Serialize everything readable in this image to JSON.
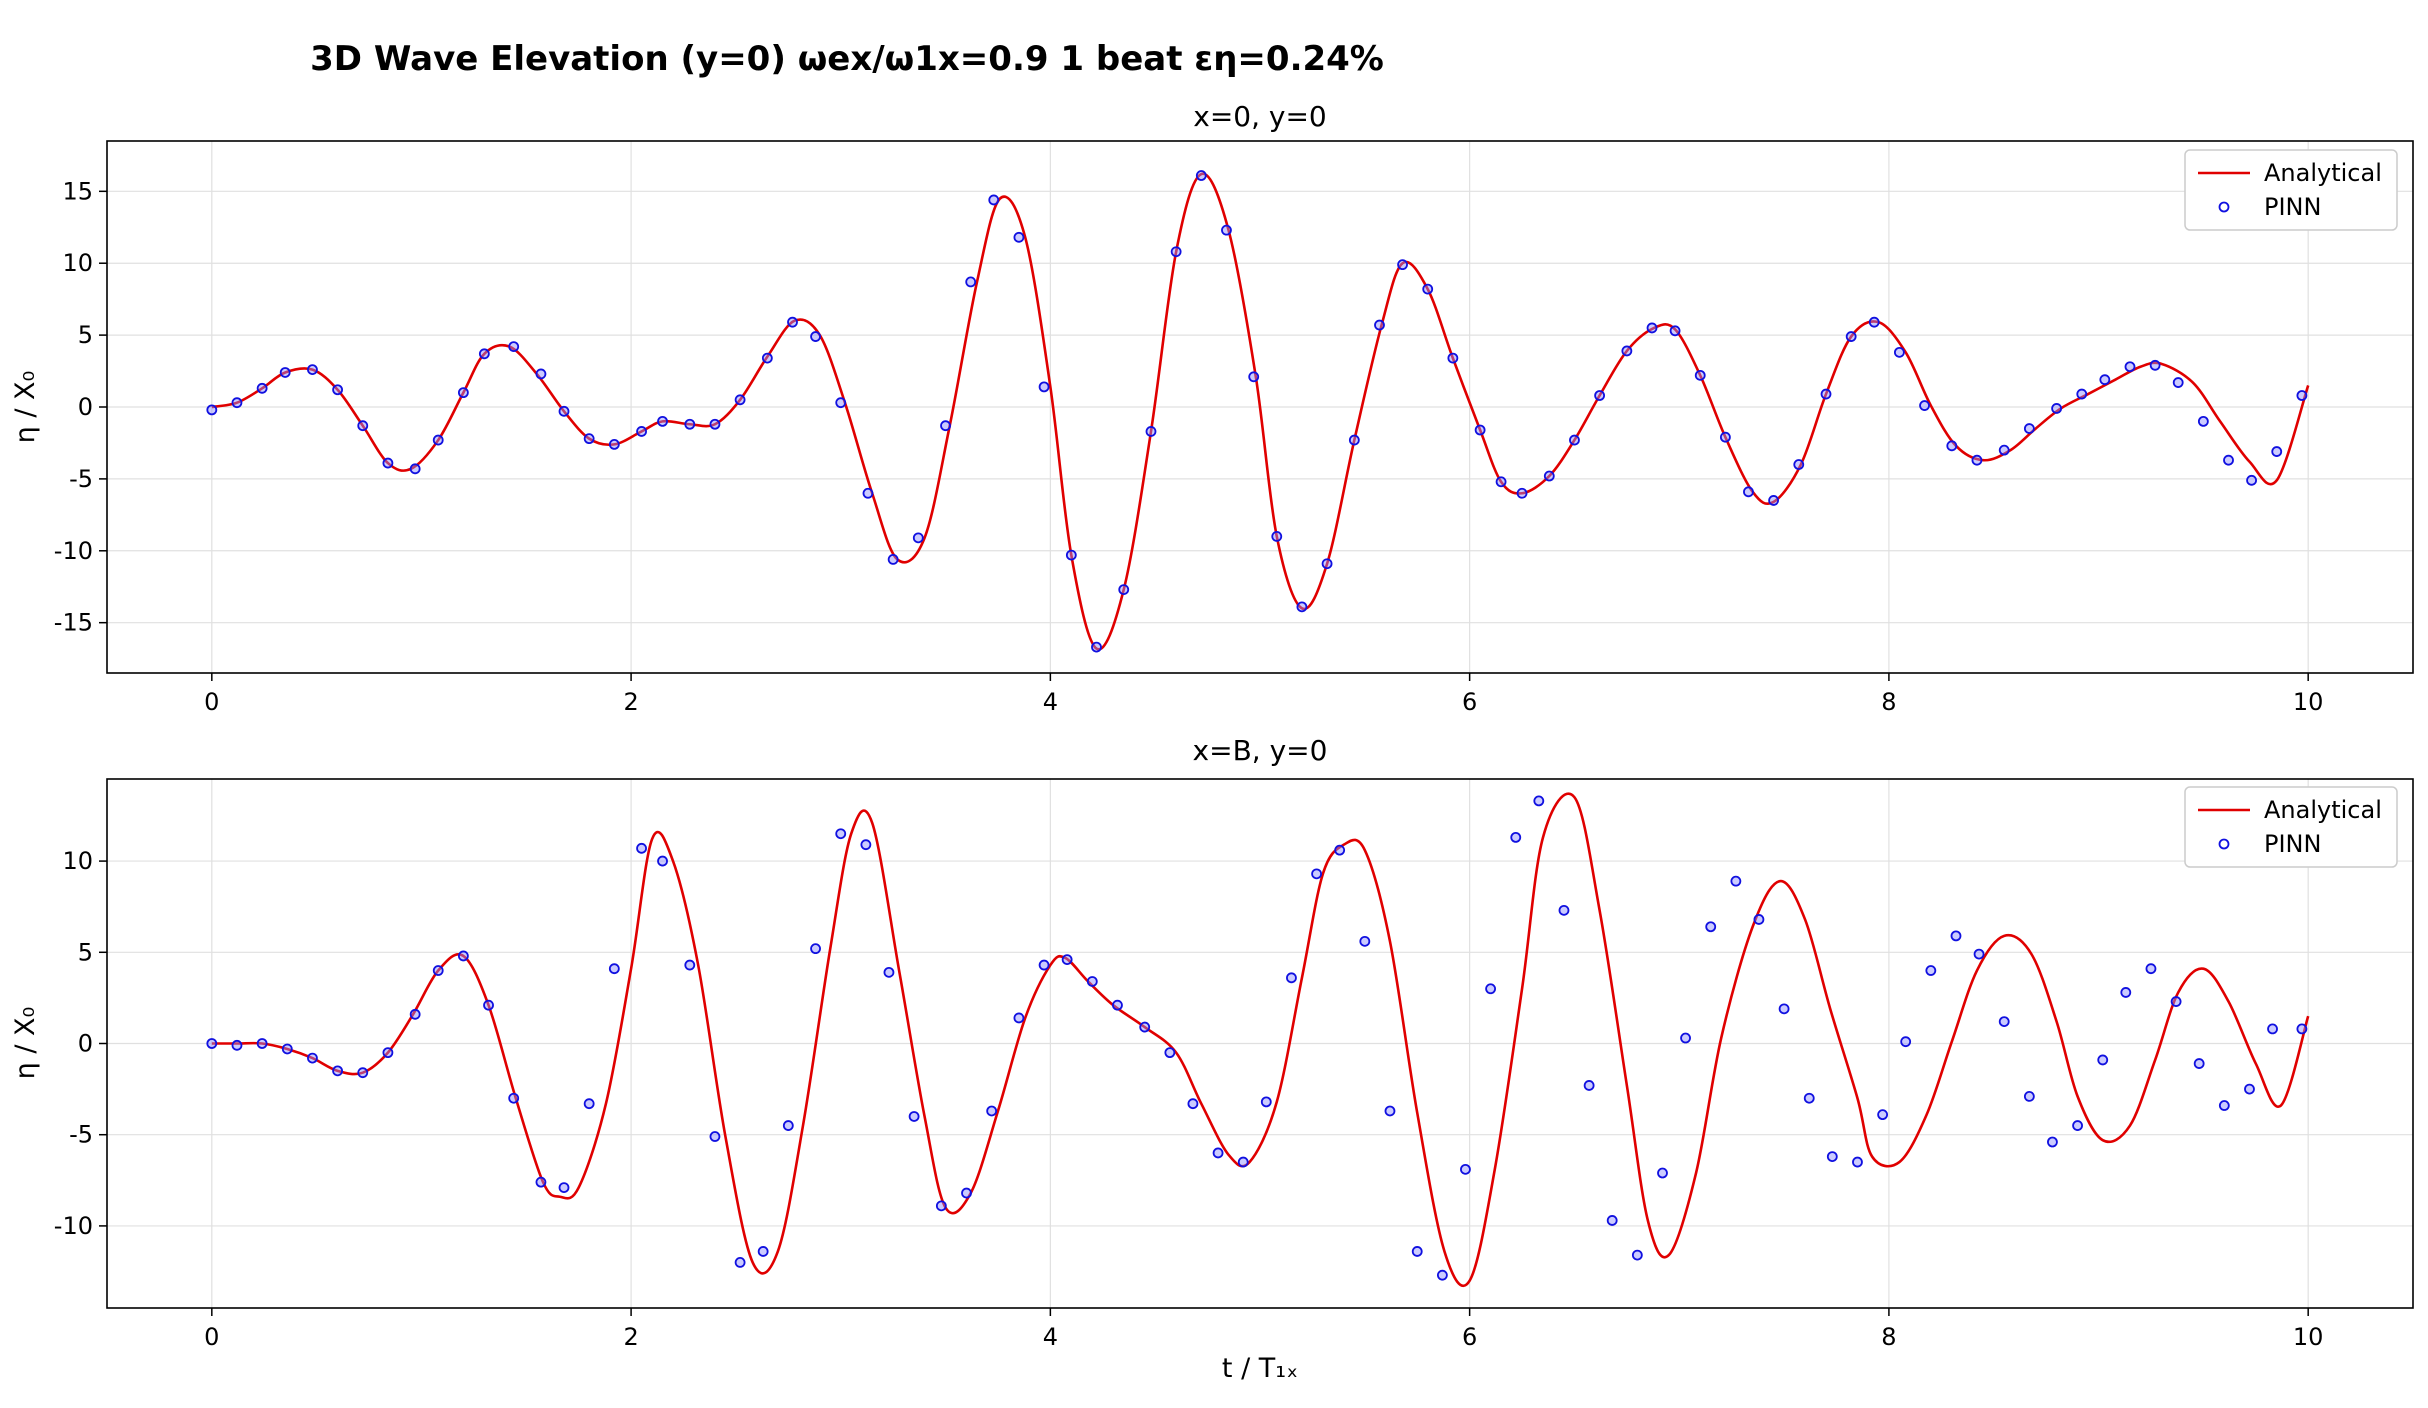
{
  "figure": {
    "suptitle": "3D Wave Elevation (y=0)   ωex/ω1x=0.9   1 beat   εη=0.24%"
  },
  "colors": {
    "analytical": "#e00000",
    "pinn": "#1010e0",
    "grid": "#e0e0e0"
  },
  "chart_data": [
    {
      "type": "line",
      "title": "x=0, y=0",
      "xlabel": "",
      "ylabel": "η / X₀",
      "xlim": [
        -0.5,
        10.5
      ],
      "ylim": [
        -18.5,
        18.5
      ],
      "xticks": [
        0,
        2,
        4,
        6,
        8,
        10
      ],
      "yticks": [
        -15,
        -10,
        -5,
        0,
        5,
        10,
        15
      ],
      "xtick_labels": [
        "0",
        "2",
        "4",
        "6",
        "8",
        "10"
      ],
      "ytick_labels": [
        "-15",
        "-10",
        "-5",
        "0",
        "5",
        "10",
        "15"
      ],
      "grid": true,
      "legend_position": "top-right",
      "series": [
        {
          "name": "Analytical",
          "style": "line",
          "x": [
            0,
            0.12,
            0.24,
            0.35,
            0.48,
            0.6,
            0.72,
            0.84,
            0.95,
            1.08,
            1.2,
            1.3,
            1.42,
            1.55,
            1.68,
            1.8,
            1.92,
            2.05,
            2.15,
            2.28,
            2.4,
            2.52,
            2.65,
            2.78,
            2.9,
            3.02,
            3.15,
            3.27,
            3.4,
            3.52,
            3.65,
            3.76,
            3.88,
            4.0,
            4.1,
            4.22,
            4.35,
            4.48,
            4.6,
            4.72,
            4.85,
            4.98,
            5.08,
            5.2,
            5.32,
            5.45,
            5.58,
            5.68,
            5.8,
            5.92,
            6.05,
            6.15,
            6.25,
            6.38,
            6.5,
            6.62,
            6.75,
            6.88,
            6.98,
            7.1,
            7.22,
            7.35,
            7.45,
            7.58,
            7.7,
            7.82,
            7.95,
            8.08,
            8.2,
            8.32,
            8.45,
            8.58,
            8.7,
            8.82,
            8.95,
            9.08,
            9.2,
            9.3,
            9.45,
            9.58,
            9.72,
            9.85,
            10.0
          ],
          "y": [
            0,
            0.3,
            1.3,
            2.4,
            2.6,
            1.2,
            -1.3,
            -3.9,
            -4.3,
            -2.3,
            1.0,
            3.7,
            4.2,
            2.3,
            -0.3,
            -2.2,
            -2.6,
            -1.7,
            -1.0,
            -1.2,
            -1.2,
            0.5,
            3.5,
            6.0,
            5.0,
            0.3,
            -6.0,
            -10.6,
            -9.1,
            -1.3,
            8.7,
            14.5,
            11.8,
            1.4,
            -10.3,
            -16.8,
            -12.7,
            -1.7,
            10.8,
            16.2,
            12.3,
            2.1,
            -9.0,
            -14.0,
            -10.9,
            -2.3,
            5.7,
            10.0,
            8.2,
            3.4,
            -1.6,
            -5.2,
            -6.0,
            -4.8,
            -2.3,
            0.8,
            3.9,
            5.5,
            5.4,
            2.2,
            -2.1,
            -5.9,
            -6.6,
            -4.0,
            0.9,
            4.9,
            5.9,
            3.8,
            0.1,
            -2.7,
            -3.7,
            -3.0,
            -1.5,
            -0.1,
            0.9,
            1.9,
            2.8,
            3.0,
            1.7,
            -1.0,
            -3.8,
            -5.1,
            1.5
          ]
        },
        {
          "name": "PINN",
          "style": "markers",
          "x": [
            0,
            0.12,
            0.24,
            0.35,
            0.48,
            0.6,
            0.72,
            0.84,
            0.97,
            1.08,
            1.2,
            1.3,
            1.44,
            1.57,
            1.68,
            1.8,
            1.92,
            2.05,
            2.15,
            2.28,
            2.4,
            2.52,
            2.65,
            2.77,
            2.88,
            3.0,
            3.13,
            3.25,
            3.37,
            3.5,
            3.62,
            3.73,
            3.85,
            3.97,
            4.1,
            4.22,
            4.35,
            4.48,
            4.6,
            4.72,
            4.84,
            4.97,
            5.08,
            5.2,
            5.32,
            5.45,
            5.57,
            5.68,
            5.8,
            5.92,
            6.05,
            6.15,
            6.25,
            6.38,
            6.5,
            6.62,
            6.75,
            6.87,
            6.98,
            7.1,
            7.22,
            7.33,
            7.45,
            7.57,
            7.7,
            7.82,
            7.93,
            8.05,
            8.17,
            8.3,
            8.42,
            8.55,
            8.67,
            8.8,
            8.92,
            9.03,
            9.15,
            9.27,
            9.38,
            9.5,
            9.62,
            9.73,
            9.85,
            9.97
          ],
          "y": [
            -0.2,
            0.3,
            1.3,
            2.4,
            2.6,
            1.2,
            -1.3,
            -3.9,
            -4.3,
            -2.3,
            1.0,
            3.7,
            4.2,
            2.3,
            -0.3,
            -2.2,
            -2.6,
            -1.7,
            -1.0,
            -1.2,
            -1.2,
            0.5,
            3.4,
            5.9,
            4.9,
            0.3,
            -6.0,
            -10.6,
            -9.1,
            -1.3,
            8.7,
            14.4,
            11.8,
            1.4,
            -10.3,
            -16.7,
            -12.7,
            -1.7,
            10.8,
            16.1,
            12.3,
            2.1,
            -9.0,
            -13.9,
            -10.9,
            -2.3,
            5.7,
            9.9,
            8.2,
            3.4,
            -1.6,
            -5.2,
            -6.0,
            -4.8,
            -2.3,
            0.8,
            3.9,
            5.5,
            5.3,
            2.2,
            -2.1,
            -5.9,
            -6.5,
            -4.0,
            0.9,
            4.9,
            5.9,
            3.8,
            0.1,
            -2.7,
            -3.7,
            -3.0,
            -1.5,
            -0.1,
            0.9,
            1.9,
            2.8,
            2.9,
            1.7,
            -1.0,
            -3.7,
            -5.1,
            -3.1,
            0.8
          ]
        }
      ]
    },
    {
      "type": "line",
      "title": "x=B, y=0",
      "xlabel": "t / T₁ₓ",
      "ylabel": "η / X₀",
      "xlim": [
        -0.5,
        10.5
      ],
      "ylim": [
        -14.5,
        14.5
      ],
      "xticks": [
        0,
        2,
        4,
        6,
        8,
        10
      ],
      "yticks": [
        -10,
        -5,
        0,
        5,
        10
      ],
      "xtick_labels": [
        "0",
        "2",
        "4",
        "6",
        "8",
        "10"
      ],
      "ytick_labels": [
        "-10",
        "-5",
        "0",
        "5",
        "10"
      ],
      "grid": true,
      "legend_position": "top-right",
      "series": [
        {
          "name": "Analytical",
          "style": "line",
          "x": [
            0,
            0.12,
            0.24,
            0.36,
            0.48,
            0.6,
            0.72,
            0.84,
            0.96,
            1.08,
            1.2,
            1.32,
            1.45,
            1.58,
            1.66,
            1.75,
            1.88,
            2.0,
            2.1,
            2.2,
            2.32,
            2.45,
            2.58,
            2.7,
            2.82,
            2.95,
            3.05,
            3.15,
            3.28,
            3.4,
            3.5,
            3.62,
            3.75,
            3.88,
            4.0,
            4.07,
            4.18,
            4.3,
            4.45,
            4.6,
            4.72,
            4.85,
            4.95,
            5.08,
            5.2,
            5.3,
            5.4,
            5.5,
            5.62,
            5.75,
            5.88,
            6.0,
            6.12,
            6.25,
            6.35,
            6.5,
            6.62,
            6.75,
            6.85,
            6.95,
            7.08,
            7.2,
            7.35,
            7.48,
            7.6,
            7.72,
            7.85,
            7.92,
            8.05,
            8.18,
            8.3,
            8.42,
            8.55,
            8.68,
            8.8,
            8.9,
            9.02,
            9.15,
            9.27,
            9.38,
            9.5,
            9.62,
            9.75,
            9.87,
            10.0
          ],
          "y": [
            0,
            0,
            0,
            -0.3,
            -0.8,
            -1.5,
            -1.6,
            -0.5,
            1.6,
            4.0,
            4.8,
            2.1,
            -3.0,
            -7.6,
            -8.4,
            -7.9,
            -3.3,
            4.1,
            11.2,
            10.0,
            4.3,
            -5.1,
            -12.0,
            -11.4,
            -4.5,
            5.2,
            11.5,
            12.1,
            3.9,
            -4.0,
            -9.0,
            -8.2,
            -3.7,
            1.4,
            4.3,
            4.7,
            3.4,
            2.1,
            0.9,
            -0.5,
            -3.3,
            -6.1,
            -6.5,
            -3.2,
            3.6,
            9.3,
            10.9,
            10.6,
            5.6,
            -3.8,
            -11.4,
            -13.0,
            -6.9,
            3.0,
            11.3,
            13.5,
            7.3,
            -2.3,
            -9.7,
            -11.6,
            -7.1,
            0.3,
            6.4,
            8.9,
            6.8,
            1.9,
            -3.0,
            -6.2,
            -6.5,
            -3.9,
            0.1,
            4.0,
            5.9,
            4.9,
            1.2,
            -2.9,
            -5.3,
            -4.5,
            -0.9,
            2.8,
            4.1,
            2.3,
            -1.1,
            -3.4,
            1.5
          ]
        },
        {
          "name": "PINN",
          "style": "markers",
          "x": [
            0,
            0.12,
            0.24,
            0.36,
            0.48,
            0.6,
            0.72,
            0.84,
            0.97,
            1.08,
            1.2,
            1.32,
            1.44,
            1.57,
            1.68,
            1.8,
            1.92,
            2.05,
            2.15,
            2.28,
            2.4,
            2.52,
            2.63,
            2.75,
            2.88,
            3.0,
            3.12,
            3.23,
            3.35,
            3.48,
            3.6,
            3.72,
            3.85,
            3.97,
            4.08,
            4.2,
            4.32,
            4.45,
            4.57,
            4.68,
            4.8,
            4.92,
            5.03,
            5.15,
            5.27,
            5.38,
            5.5,
            5.62,
            5.75,
            5.87,
            5.98,
            6.1,
            6.22,
            6.33,
            6.45,
            6.57,
            6.68,
            6.8,
            6.92,
            7.03,
            7.15,
            7.27,
            7.38,
            7.5,
            7.62,
            7.73,
            7.85,
            7.97,
            8.08,
            8.2,
            8.32,
            8.43,
            8.55,
            8.67,
            8.78,
            8.9,
            9.02,
            9.13,
            9.25,
            9.37,
            9.48,
            9.6,
            9.72,
            9.83,
            9.97
          ],
          "y": [
            0,
            -0.1,
            0,
            -0.3,
            -0.8,
            -1.5,
            -1.6,
            -0.5,
            1.6,
            4.0,
            4.8,
            2.1,
            -3.0,
            -7.6,
            -7.9,
            -3.3,
            4.1,
            10.7,
            10.0,
            4.3,
            -5.1,
            -12.0,
            -11.4,
            -4.5,
            5.2,
            11.5,
            10.9,
            3.9,
            -4.0,
            -8.9,
            -8.2,
            -3.7,
            1.4,
            4.3,
            4.6,
            3.4,
            2.1,
            0.9,
            -0.5,
            -3.3,
            -6.0,
            -6.5,
            -3.2,
            3.6,
            9.3,
            10.6,
            5.6,
            -3.7,
            -11.4,
            -12.7,
            -6.9,
            3.0,
            11.3,
            13.3,
            7.3,
            -2.3,
            -9.7,
            -11.6,
            -7.1,
            0.3,
            6.4,
            8.9,
            6.8,
            1.9,
            -3.0,
            -6.2,
            -6.5,
            -3.9,
            0.1,
            4.0,
            5.9,
            4.9,
            1.2,
            -2.9,
            -5.4,
            -4.5,
            -0.9,
            2.8,
            4.1,
            2.3,
            -1.1,
            -3.4,
            -2.5,
            0.8,
            0.8
          ]
        }
      ]
    }
  ]
}
